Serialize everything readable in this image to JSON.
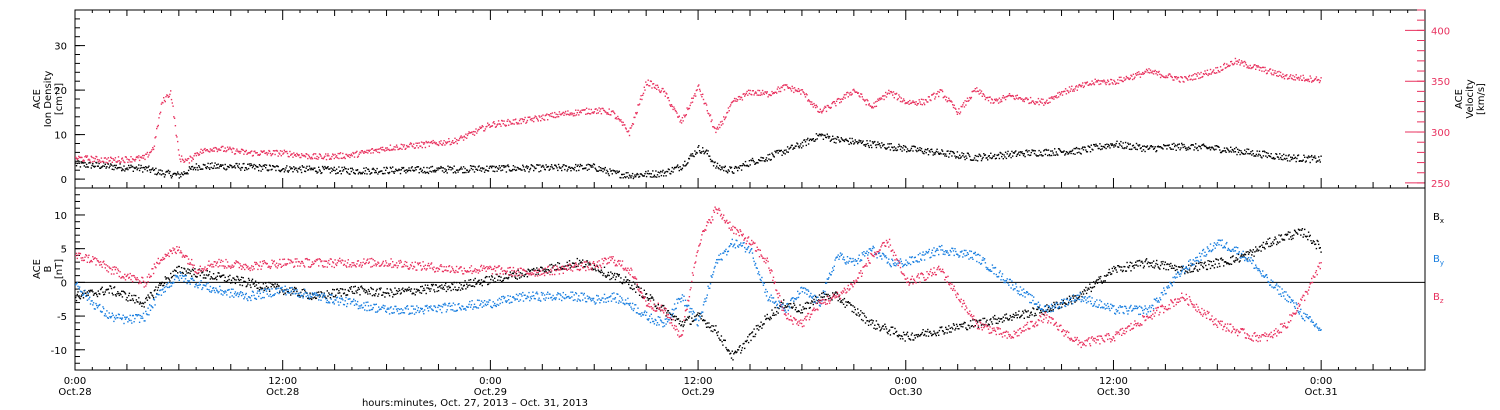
{
  "colors": {
    "black": "#000000",
    "pink": "#e8325f",
    "blue": "#1a7fe0"
  },
  "footer_label": "hours:minutes, Oct. 27, 2013 – Oct. 31, 2013",
  "x_ticks": [
    {
      "t": 0,
      "time": "0:00",
      "date": "Oct.28"
    },
    {
      "t": 12,
      "time": "12:00",
      "date": "Oct.28"
    },
    {
      "t": 24,
      "time": "0:00",
      "date": "Oct.29"
    },
    {
      "t": 36,
      "time": "12:00",
      "date": "Oct.29"
    },
    {
      "t": 48,
      "time": "0:00",
      "date": "Oct.30"
    },
    {
      "t": 60,
      "time": "12:00",
      "date": "Oct.30"
    },
    {
      "t": 72,
      "time": "0:00",
      "date": "Oct.31"
    }
  ],
  "chart_data": [
    {
      "type": "scatter",
      "panel": "top",
      "xlim_hours": [
        0,
        78
      ],
      "y_left": {
        "label_lines": [
          "ACE",
          "Ion Density",
          "[cm⁻³]"
        ],
        "lim": [
          -2,
          38
        ],
        "ticks": [
          0,
          10,
          20,
          30
        ]
      },
      "y_right": {
        "label_lines": [
          "ACE",
          "Velocity",
          "[km/s]"
        ],
        "lim": [
          245,
          420
        ],
        "ticks": [
          250,
          300,
          350,
          400
        ]
      },
      "series": [
        {
          "axis": "left",
          "color": "#000000",
          "x": [
            0,
            2,
            4,
            5,
            6,
            7,
            9,
            12,
            16,
            20,
            24,
            27,
            30,
            31,
            32,
            34,
            35,
            35.5,
            36,
            36.5,
            37,
            38,
            39,
            40,
            42,
            43,
            44,
            46,
            48,
            50,
            52,
            55,
            58,
            60,
            62,
            64,
            66,
            68,
            70,
            72
          ],
          "y": [
            3.5,
            3,
            2.5,
            1.5,
            1,
            3,
            3,
            2.5,
            2,
            2.2,
            2.5,
            2.6,
            2.8,
            1.5,
            1,
            1.5,
            3,
            5,
            7,
            6,
            3,
            2,
            4,
            5,
            8,
            10,
            9,
            8,
            7,
            6,
            5,
            6,
            6.5,
            8,
            7,
            7.5,
            7,
            6,
            5,
            4.5
          ]
        },
        {
          "axis": "right",
          "color": "#e8325f",
          "x": [
            0,
            2,
            4,
            4.5,
            5,
            5.5,
            6,
            6.5,
            7,
            8,
            10,
            12,
            14,
            16,
            18,
            20,
            22,
            23,
            24,
            26,
            28,
            30,
            31,
            32,
            33,
            34,
            35,
            36,
            37,
            38,
            39,
            40,
            41,
            42,
            43,
            44,
            45,
            46,
            47,
            48,
            49,
            50,
            51,
            52,
            53,
            54,
            55,
            56,
            57,
            58,
            59,
            60,
            62,
            64,
            66,
            67,
            68,
            70,
            72
          ],
          "y": [
            275,
            273,
            275,
            285,
            330,
            340,
            275,
            272,
            280,
            285,
            280,
            280,
            276,
            278,
            285,
            288,
            292,
            300,
            308,
            312,
            318,
            322,
            320,
            300,
            350,
            340,
            310,
            345,
            300,
            330,
            340,
            338,
            345,
            340,
            320,
            330,
            342,
            325,
            340,
            330,
            330,
            340,
            320,
            342,
            330,
            336,
            332,
            330,
            340,
            345,
            350,
            350,
            360,
            352,
            362,
            370,
            365,
            355,
            352
          ]
        }
      ]
    },
    {
      "type": "scatter",
      "panel": "bottom",
      "xlim_hours": [
        0,
        78
      ],
      "y": {
        "label_lines": [
          "ACE",
          "B",
          "[nT]"
        ],
        "lim": [
          -13,
          14
        ],
        "ticks": [
          -10,
          -5,
          0,
          5,
          10
        ]
      },
      "reference_line_y": 0,
      "series": [
        {
          "name": "Bx",
          "color": "#000000",
          "x": [
            0,
            1,
            2,
            3,
            4,
            5,
            6,
            7,
            8,
            10,
            12,
            14,
            16,
            18,
            20,
            22,
            24,
            26,
            28,
            29,
            30,
            31,
            32,
            33,
            34,
            35,
            36,
            37,
            38,
            39,
            40,
            41,
            42,
            43,
            44,
            45,
            46,
            47,
            48,
            50,
            52,
            54,
            56,
            58,
            60,
            62,
            64,
            66,
            67,
            68,
            69,
            70,
            71,
            72
          ],
          "y": [
            -2,
            -1.5,
            -1,
            -2,
            -3,
            0,
            2,
            1.5,
            1,
            0,
            -1,
            -2,
            -1,
            -1.5,
            -1,
            -0.5,
            0.5,
            1.5,
            2.5,
            3,
            2.5,
            1,
            0,
            -2,
            -4,
            -6,
            -5,
            -7,
            -11,
            -8,
            -5,
            -3,
            -4,
            -2,
            -2,
            -4,
            -6,
            -7,
            -8,
            -7,
            -6,
            -5,
            -4,
            -2,
            2,
            3,
            2,
            3,
            3.5,
            4.5,
            6,
            7,
            7.5,
            5
          ]
        },
        {
          "name": "By",
          "color": "#1a7fe0",
          "x": [
            0,
            1,
            2,
            3,
            4,
            5,
            6,
            7,
            8,
            10,
            12,
            14,
            16,
            18,
            20,
            22,
            24,
            26,
            28,
            29,
            30,
            31,
            32,
            33,
            34,
            35,
            36,
            37,
            38,
            39,
            40,
            41,
            42,
            43,
            44,
            45,
            46,
            47,
            48,
            50,
            52,
            54,
            56,
            58,
            60,
            62,
            64,
            66,
            67,
            68,
            69,
            70,
            71,
            72
          ],
          "y": [
            0,
            -3,
            -5,
            -5.5,
            -5,
            -1,
            1,
            0,
            -1,
            -2,
            -1,
            -2,
            -3,
            -4,
            -4,
            -3.5,
            -3,
            -2,
            -2,
            -2,
            -2.5,
            -2,
            -3,
            -5,
            -6,
            -2,
            -6,
            3,
            6,
            5,
            -2,
            -4,
            -1,
            -3,
            4,
            3,
            5,
            3,
            3,
            5,
            4,
            0,
            -4,
            -2,
            -4,
            -4,
            2,
            6,
            5,
            3,
            0,
            -2,
            -5,
            -7
          ]
        },
        {
          "name": "Bz",
          "color": "#e8325f",
          "x": [
            0,
            1,
            2,
            3,
            4,
            5,
            6,
            7,
            8,
            10,
            12,
            14,
            16,
            18,
            20,
            22,
            24,
            26,
            28,
            29,
            30,
            31,
            32,
            33,
            34,
            35,
            36,
            37,
            38,
            39,
            40,
            41,
            42,
            43,
            44,
            45,
            46,
            47,
            48,
            50,
            52,
            54,
            56,
            58,
            60,
            62,
            64,
            66,
            67,
            68,
            69,
            70,
            71,
            72
          ],
          "y": [
            4,
            3.5,
            2,
            1,
            0,
            4,
            5,
            2,
            3,
            2.5,
            3,
            3,
            3,
            3,
            2.5,
            2,
            2,
            1.5,
            2,
            2.5,
            2.5,
            3.5,
            2,
            -3,
            -4,
            -8,
            6,
            11,
            8,
            6,
            3,
            -5,
            -6,
            -3,
            -2,
            0,
            4,
            6,
            0,
            2,
            -6,
            -8,
            -5,
            -9,
            -8,
            -5,
            -2,
            -6,
            -7,
            -8,
            -8,
            -6,
            -2,
            3
          ]
        }
      ]
    }
  ]
}
